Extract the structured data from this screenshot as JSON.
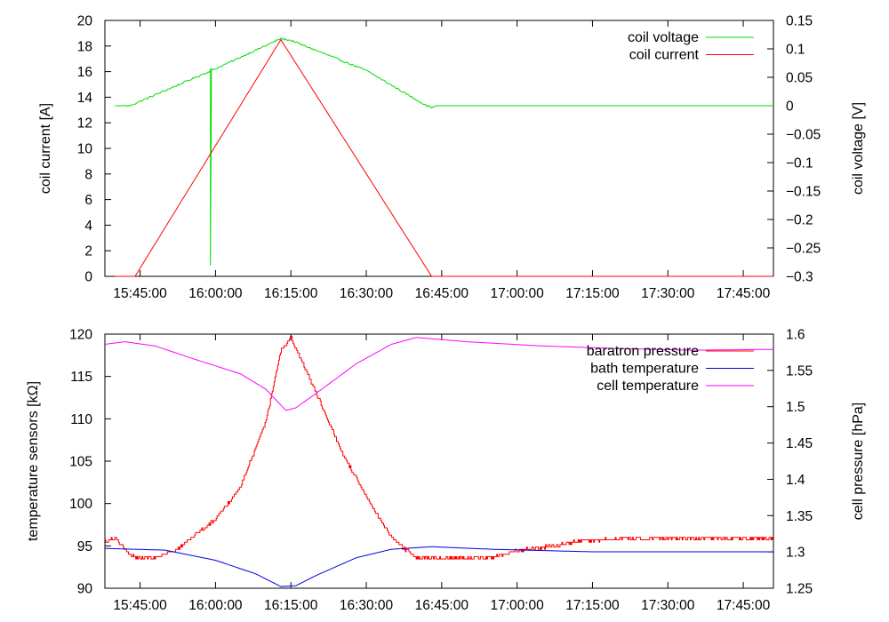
{
  "chart_data": [
    {
      "type": "line",
      "x_ticks": [
        "15:45:00",
        "16:00:00",
        "16:15:00",
        "16:30:00",
        "16:45:00",
        "17:00:00",
        "17:15:00",
        "17:30:00",
        "17:45:00"
      ],
      "xlim": [
        "15:38:00",
        "17:51:00"
      ],
      "ylabel": "coil current [A]",
      "y2label": "coil voltage [V]",
      "ylim": [
        0,
        20
      ],
      "y2lim": [
        -0.3,
        0.15
      ],
      "y_ticks": [
        0,
        2,
        4,
        6,
        8,
        10,
        12,
        14,
        16,
        18,
        20
      ],
      "y2_ticks": [
        "-0.3",
        "-0.25",
        "-0.2",
        "-0.15",
        "-0.1",
        "-0.05",
        "0",
        "0.05",
        "0.1",
        "0.15"
      ],
      "legend_position": "top-right",
      "grid": false,
      "series": [
        {
          "name": "coil voltage",
          "axis": "y2",
          "color": "#00dd00",
          "points": [
            [
              "15:40:00",
              0.0
            ],
            [
              "15:43:00",
              0.0
            ],
            [
              "16:00:00",
              0.065
            ],
            [
              "16:13:00",
              0.118
            ],
            [
              "16:15:00",
              0.115
            ],
            [
              "16:30:00",
              0.062
            ],
            [
              "16:42:00",
              0.0
            ],
            [
              "16:43:00",
              -0.003
            ],
            [
              "16:44:00",
              0.0
            ],
            [
              "17:51:00",
              0.0
            ]
          ],
          "spike": {
            "time": "15:59:00",
            "from": 0.065,
            "to": -0.28
          }
        },
        {
          "name": "coil current",
          "axis": "y",
          "color": "#ff0000",
          "points": [
            [
              "15:40:00",
              0.0
            ],
            [
              "15:44:00",
              0.0
            ],
            [
              "16:13:00",
              18.5
            ],
            [
              "16:43:00",
              0.0
            ],
            [
              "17:51:00",
              0.0
            ]
          ]
        }
      ]
    },
    {
      "type": "line",
      "x_ticks": [
        "15:45:00",
        "16:00:00",
        "16:15:00",
        "16:30:00",
        "16:45:00",
        "17:00:00",
        "17:15:00",
        "17:30:00",
        "17:45:00"
      ],
      "xlim": [
        "15:38:00",
        "17:51:00"
      ],
      "ylabel": "temperature sensors [kΩ]",
      "y2label": "cell pressure [hPa]",
      "ylim": [
        90,
        120
      ],
      "y2lim": [
        1.25,
        1.6
      ],
      "y_ticks": [
        90,
        95,
        100,
        105,
        110,
        115,
        120
      ],
      "y2_ticks": [
        "1.25",
        "1.3",
        "1.35",
        "1.4",
        "1.45",
        "1.5",
        "1.55",
        "1.6"
      ],
      "legend_position": "top-right",
      "grid": false,
      "series": [
        {
          "name": "baratron pressure",
          "axis": "y2",
          "color": "#ff0000",
          "stepped": true,
          "points": [
            [
              "15:38:00",
              1.315
            ],
            [
              "15:40:00",
              1.32
            ],
            [
              "15:43:00",
              1.295
            ],
            [
              "15:45:00",
              1.292
            ],
            [
              "15:48:00",
              1.292
            ],
            [
              "15:52:00",
              1.302
            ],
            [
              "16:00:00",
              1.345
            ],
            [
              "16:05:00",
              1.39
            ],
            [
              "16:10:00",
              1.48
            ],
            [
              "16:13:00",
              1.578
            ],
            [
              "16:15:00",
              1.595
            ],
            [
              "16:18:00",
              1.55
            ],
            [
              "16:25:00",
              1.44
            ],
            [
              "16:30:00",
              1.375
            ],
            [
              "16:35:00",
              1.32
            ],
            [
              "16:38:00",
              1.302
            ],
            [
              "16:40:00",
              1.292
            ],
            [
              "16:55:00",
              1.292
            ],
            [
              "17:00:00",
              1.302
            ],
            [
              "17:07:00",
              1.308
            ],
            [
              "17:12:00",
              1.315
            ],
            [
              "17:20:00",
              1.318
            ],
            [
              "17:35:00",
              1.319
            ],
            [
              "17:51:00",
              1.319
            ]
          ]
        },
        {
          "name": "bath temperature",
          "axis": "y",
          "color": "#0000dd",
          "points": [
            [
              "15:38:00",
              94.7
            ],
            [
              "15:50:00",
              94.5
            ],
            [
              "16:00:00",
              93.3
            ],
            [
              "16:08:00",
              91.7
            ],
            [
              "16:13:00",
              90.2
            ],
            [
              "16:16:00",
              90.3
            ],
            [
              "16:20:00",
              91.5
            ],
            [
              "16:28:00",
              93.6
            ],
            [
              "16:35:00",
              94.6
            ],
            [
              "16:43:00",
              94.9
            ],
            [
              "16:55:00",
              94.6
            ],
            [
              "17:15:00",
              94.3
            ],
            [
              "17:35:00",
              94.3
            ],
            [
              "17:51:00",
              94.3
            ]
          ]
        },
        {
          "name": "cell temperature",
          "axis": "y",
          "color": "#ff00ff",
          "points": [
            [
              "15:38:00",
              118.8
            ],
            [
              "15:42:00",
              119.1
            ],
            [
              "15:48:00",
              118.6
            ],
            [
              "15:55:00",
              117.2
            ],
            [
              "16:05:00",
              115.3
            ],
            [
              "16:10:00",
              113.5
            ],
            [
              "16:14:00",
              111.0
            ],
            [
              "16:16:00",
              111.3
            ],
            [
              "16:20:00",
              113.0
            ],
            [
              "16:28:00",
              116.5
            ],
            [
              "16:35:00",
              118.8
            ],
            [
              "16:40:00",
              119.6
            ],
            [
              "16:50:00",
              119.1
            ],
            [
              "17:05:00",
              118.6
            ],
            [
              "17:20:00",
              118.3
            ],
            [
              "17:35:00",
              118.1
            ],
            [
              "17:51:00",
              118.2
            ]
          ]
        }
      ]
    }
  ]
}
